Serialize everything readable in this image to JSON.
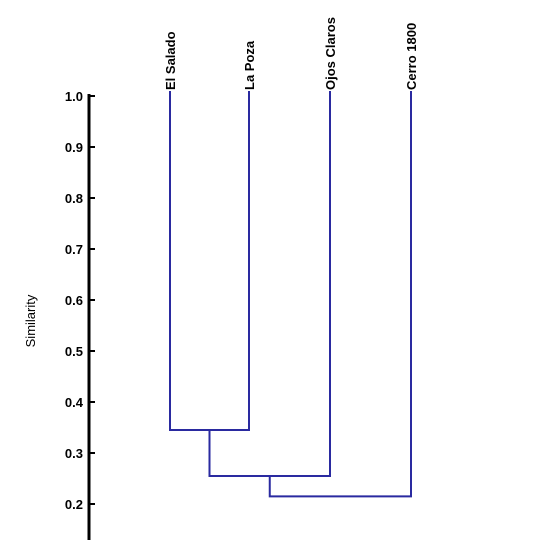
{
  "chart_data": {
    "type": "dendrogram",
    "ylabel": "Similarity",
    "ylim": [
      0.15,
      1.0
    ],
    "yticks": [
      "1.0",
      "0.9",
      "0.8",
      "0.7",
      "0.6",
      "0.5",
      "0.4",
      "0.3",
      "0.2"
    ],
    "leaves": [
      "El Salado",
      "La Poza",
      "Ojos Claros",
      "Cerro 1800"
    ],
    "merges": [
      {
        "left": "El Salado",
        "right": "La Poza",
        "similarity": 0.345
      },
      {
        "left": "El Salado + La Poza",
        "right": "Ojos Claros",
        "similarity": 0.255
      },
      {
        "left": "El Salado + La Poza + Ojos Claros",
        "right": "Cerro 1800",
        "similarity": 0.215
      }
    ],
    "line_color": "#2a2aa0",
    "grid": false
  }
}
